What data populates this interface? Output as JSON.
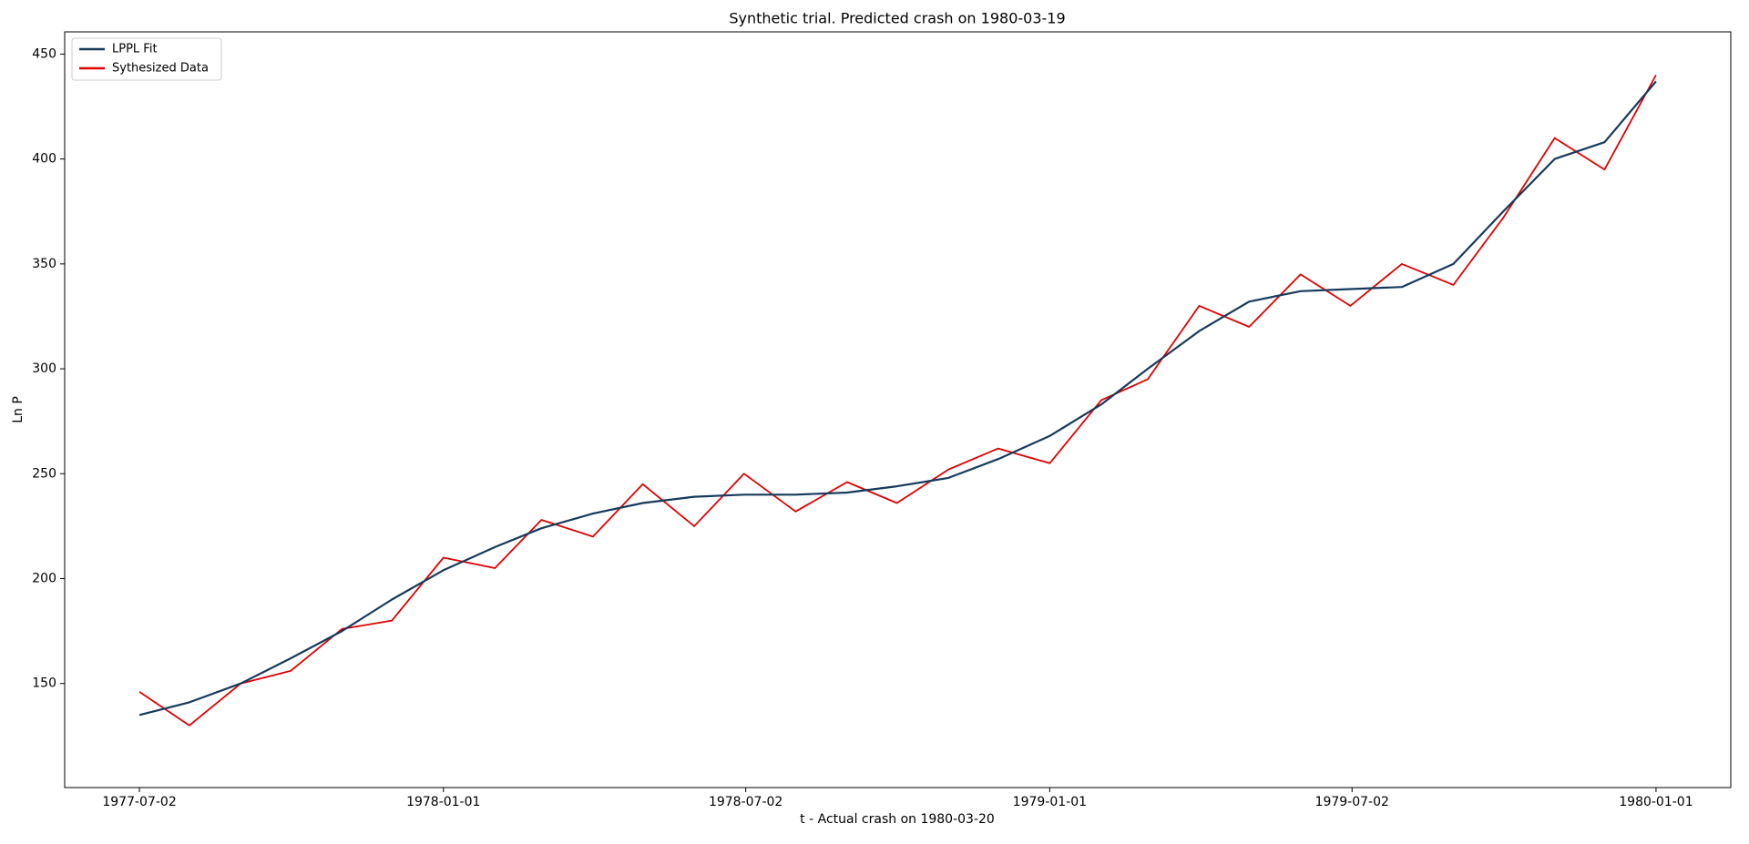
{
  "chart_data": {
    "type": "line",
    "title": "Synthetic trial. Predicted crash on 1980-03-19",
    "xlabel": "t - Actual crash on 1980-03-20",
    "ylabel": "Ln P",
    "x": [
      "1977-07-02",
      "1977-08-01",
      "1977-09-01",
      "1977-10-01",
      "1977-11-01",
      "1977-12-01",
      "1978-01-01",
      "1978-02-01",
      "1978-03-01",
      "1978-04-01",
      "1978-05-01",
      "1978-06-01",
      "1978-07-01",
      "1978-08-01",
      "1978-09-01",
      "1978-10-01",
      "1978-11-01",
      "1978-12-01",
      "1979-01-01",
      "1979-02-01",
      "1979-03-01",
      "1979-04-01",
      "1979-05-01",
      "1979-06-01",
      "1979-07-01",
      "1979-08-01",
      "1979-09-01",
      "1979-10-01",
      "1979-11-01",
      "1979-12-01",
      "1980-01-01"
    ],
    "series": [
      {
        "name": "Sythesized Data",
        "color": "#e00000",
        "values": [
          146,
          130,
          150,
          156,
          176,
          180,
          210,
          205,
          228,
          220,
          245,
          225,
          250,
          232,
          246,
          236,
          252,
          262,
          255,
          285,
          295,
          330,
          320,
          345,
          330,
          350,
          340,
          372,
          410,
          395,
          440
        ]
      },
      {
        "name": "LPPL Fit",
        "color": "#163a5c",
        "values": [
          135,
          141,
          150,
          162,
          175,
          190,
          204,
          215,
          224,
          231,
          236,
          239,
          240,
          240,
          241,
          244,
          248,
          257,
          268,
          283,
          300,
          318,
          332,
          337,
          338,
          339,
          350,
          375,
          400,
          408,
          437
        ]
      }
    ],
    "legend_order": [
      "LPPL Fit",
      "Sythesized Data"
    ],
    "xlim": [
      "1977-05-18",
      "1980-02-15"
    ],
    "xticks": [
      "1977-07-02",
      "1978-01-01",
      "1978-07-02",
      "1979-01-01",
      "1979-07-02",
      "1980-01-01"
    ],
    "ylim": [
      100.4,
      460.6
    ],
    "yticks": [
      150,
      200,
      250,
      300,
      350,
      400,
      450
    ],
    "legend": "upper left"
  }
}
